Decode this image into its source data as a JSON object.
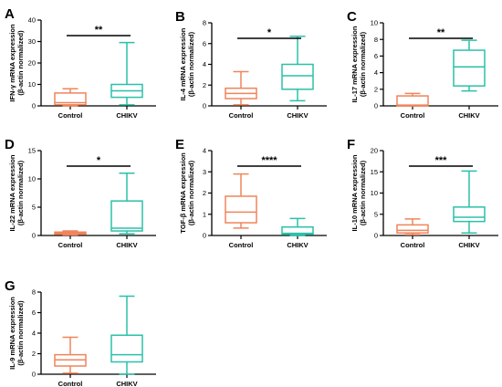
{
  "colors": {
    "control": "#f0845a",
    "chikv": "#2bc0a8",
    "axis": "#000000"
  },
  "chart_data": [
    {
      "type": "box",
      "panel_letter": "A",
      "ylabel_line1": "IFN-γ mRNA expression",
      "ylabel_line2": "(β-actin normalized)",
      "categories": [
        "Control",
        "CHIKV"
      ],
      "ylim": [
        0,
        40
      ],
      "yticks": [
        0,
        10,
        20,
        30,
        40
      ],
      "boxes": [
        {
          "name": "Control",
          "whislo": 0,
          "q1": 0.5,
          "med": 1.5,
          "q3": 6,
          "whishi": 8
        },
        {
          "name": "CHIKV",
          "whislo": 0.5,
          "q1": 4,
          "med": 7,
          "q3": 10,
          "whishi": 29.5
        }
      ],
      "significance": "**"
    },
    {
      "type": "box",
      "panel_letter": "B",
      "ylabel_line1": "IL-4 mRNA expression",
      "ylabel_line2": "(β-actin normalized)",
      "categories": [
        "Control",
        "CHIKV"
      ],
      "ylim": [
        0,
        8
      ],
      "yticks": [
        0,
        2,
        4,
        6,
        8
      ],
      "boxes": [
        {
          "name": "Control",
          "whislo": 0.1,
          "q1": 0.7,
          "med": 1.2,
          "q3": 1.7,
          "whishi": 3.3
        },
        {
          "name": "CHIKV",
          "whislo": 0.5,
          "q1": 1.6,
          "med": 2.9,
          "q3": 4.0,
          "whishi": 6.7
        }
      ],
      "significance": "*"
    },
    {
      "type": "box",
      "panel_letter": "C",
      "ylabel_line1": "IL-17 mRNA expression",
      "ylabel_line2": "(β-actin normalized)",
      "categories": [
        "Control",
        "CHIKV"
      ],
      "ylim": [
        0,
        10
      ],
      "yticks": [
        0,
        2,
        4,
        6,
        8,
        10
      ],
      "boxes": [
        {
          "name": "Control",
          "whislo": 0,
          "q1": 0,
          "med": 0.1,
          "q3": 1.2,
          "whishi": 1.5
        },
        {
          "name": "CHIKV",
          "whislo": 1.8,
          "q1": 2.4,
          "med": 4.7,
          "q3": 6.7,
          "whishi": 7.9
        }
      ],
      "significance": "**"
    },
    {
      "type": "box",
      "panel_letter": "D",
      "ylabel_line1": "IL-22 mRNA expression",
      "ylabel_line2": "(β-actin normalized)",
      "categories": [
        "Control",
        "CHIKV"
      ],
      "ylim": [
        0,
        15
      ],
      "yticks": [
        0,
        5,
        10,
        15
      ],
      "boxes": [
        {
          "name": "Control",
          "whislo": 0.1,
          "q1": 0.2,
          "med": 0.4,
          "q3": 0.6,
          "whishi": 0.8
        },
        {
          "name": "CHIKV",
          "whislo": 0.3,
          "q1": 0.8,
          "med": 1.3,
          "q3": 6.1,
          "whishi": 11
        }
      ],
      "significance": "*"
    },
    {
      "type": "box",
      "panel_letter": "E",
      "ylabel_line1": "TGF-β mRNA expression",
      "ylabel_line2": "(β-actin normalized)",
      "categories": [
        "Control",
        "CHIKV"
      ],
      "ylim": [
        0,
        4
      ],
      "yticks": [
        0,
        1,
        2,
        3,
        4
      ],
      "boxes": [
        {
          "name": "Control",
          "whislo": 0.35,
          "q1": 0.6,
          "med": 1.1,
          "q3": 1.85,
          "whishi": 2.9
        },
        {
          "name": "CHIKV",
          "whislo": 0,
          "q1": 0.05,
          "med": 0.1,
          "q3": 0.4,
          "whishi": 0.8
        }
      ],
      "significance": "****"
    },
    {
      "type": "box",
      "panel_letter": "F",
      "ylabel_line1": "IL-10 mRNA expression",
      "ylabel_line2": "(β-actin normalized)",
      "categories": [
        "Control",
        "CHIKV"
      ],
      "ylim": [
        0,
        20
      ],
      "yticks": [
        0,
        5,
        10,
        15,
        20
      ],
      "boxes": [
        {
          "name": "Control",
          "whislo": 0.2,
          "q1": 0.6,
          "med": 1.2,
          "q3": 2.5,
          "whishi": 3.9
        },
        {
          "name": "CHIKV",
          "whislo": 0.6,
          "q1": 3.3,
          "med": 4.3,
          "q3": 6.7,
          "whishi": 15.2
        }
      ],
      "significance": "***"
    },
    {
      "type": "box",
      "panel_letter": "G",
      "ylabel_line1": "IL-9 mRNA expression",
      "ylabel_line2": "(β-actin normalized)",
      "categories": [
        "Control",
        "CHIKV"
      ],
      "ylim": [
        0,
        8
      ],
      "yticks": [
        0,
        2,
        4,
        6,
        8
      ],
      "boxes": [
        {
          "name": "Control",
          "whislo": 0.1,
          "q1": 0.8,
          "med": 1.4,
          "q3": 1.9,
          "whishi": 3.6
        },
        {
          "name": "CHIKV",
          "whislo": 0,
          "q1": 1.2,
          "med": 1.9,
          "q3": 3.8,
          "whishi": 7.6
        }
      ],
      "significance": ""
    }
  ]
}
